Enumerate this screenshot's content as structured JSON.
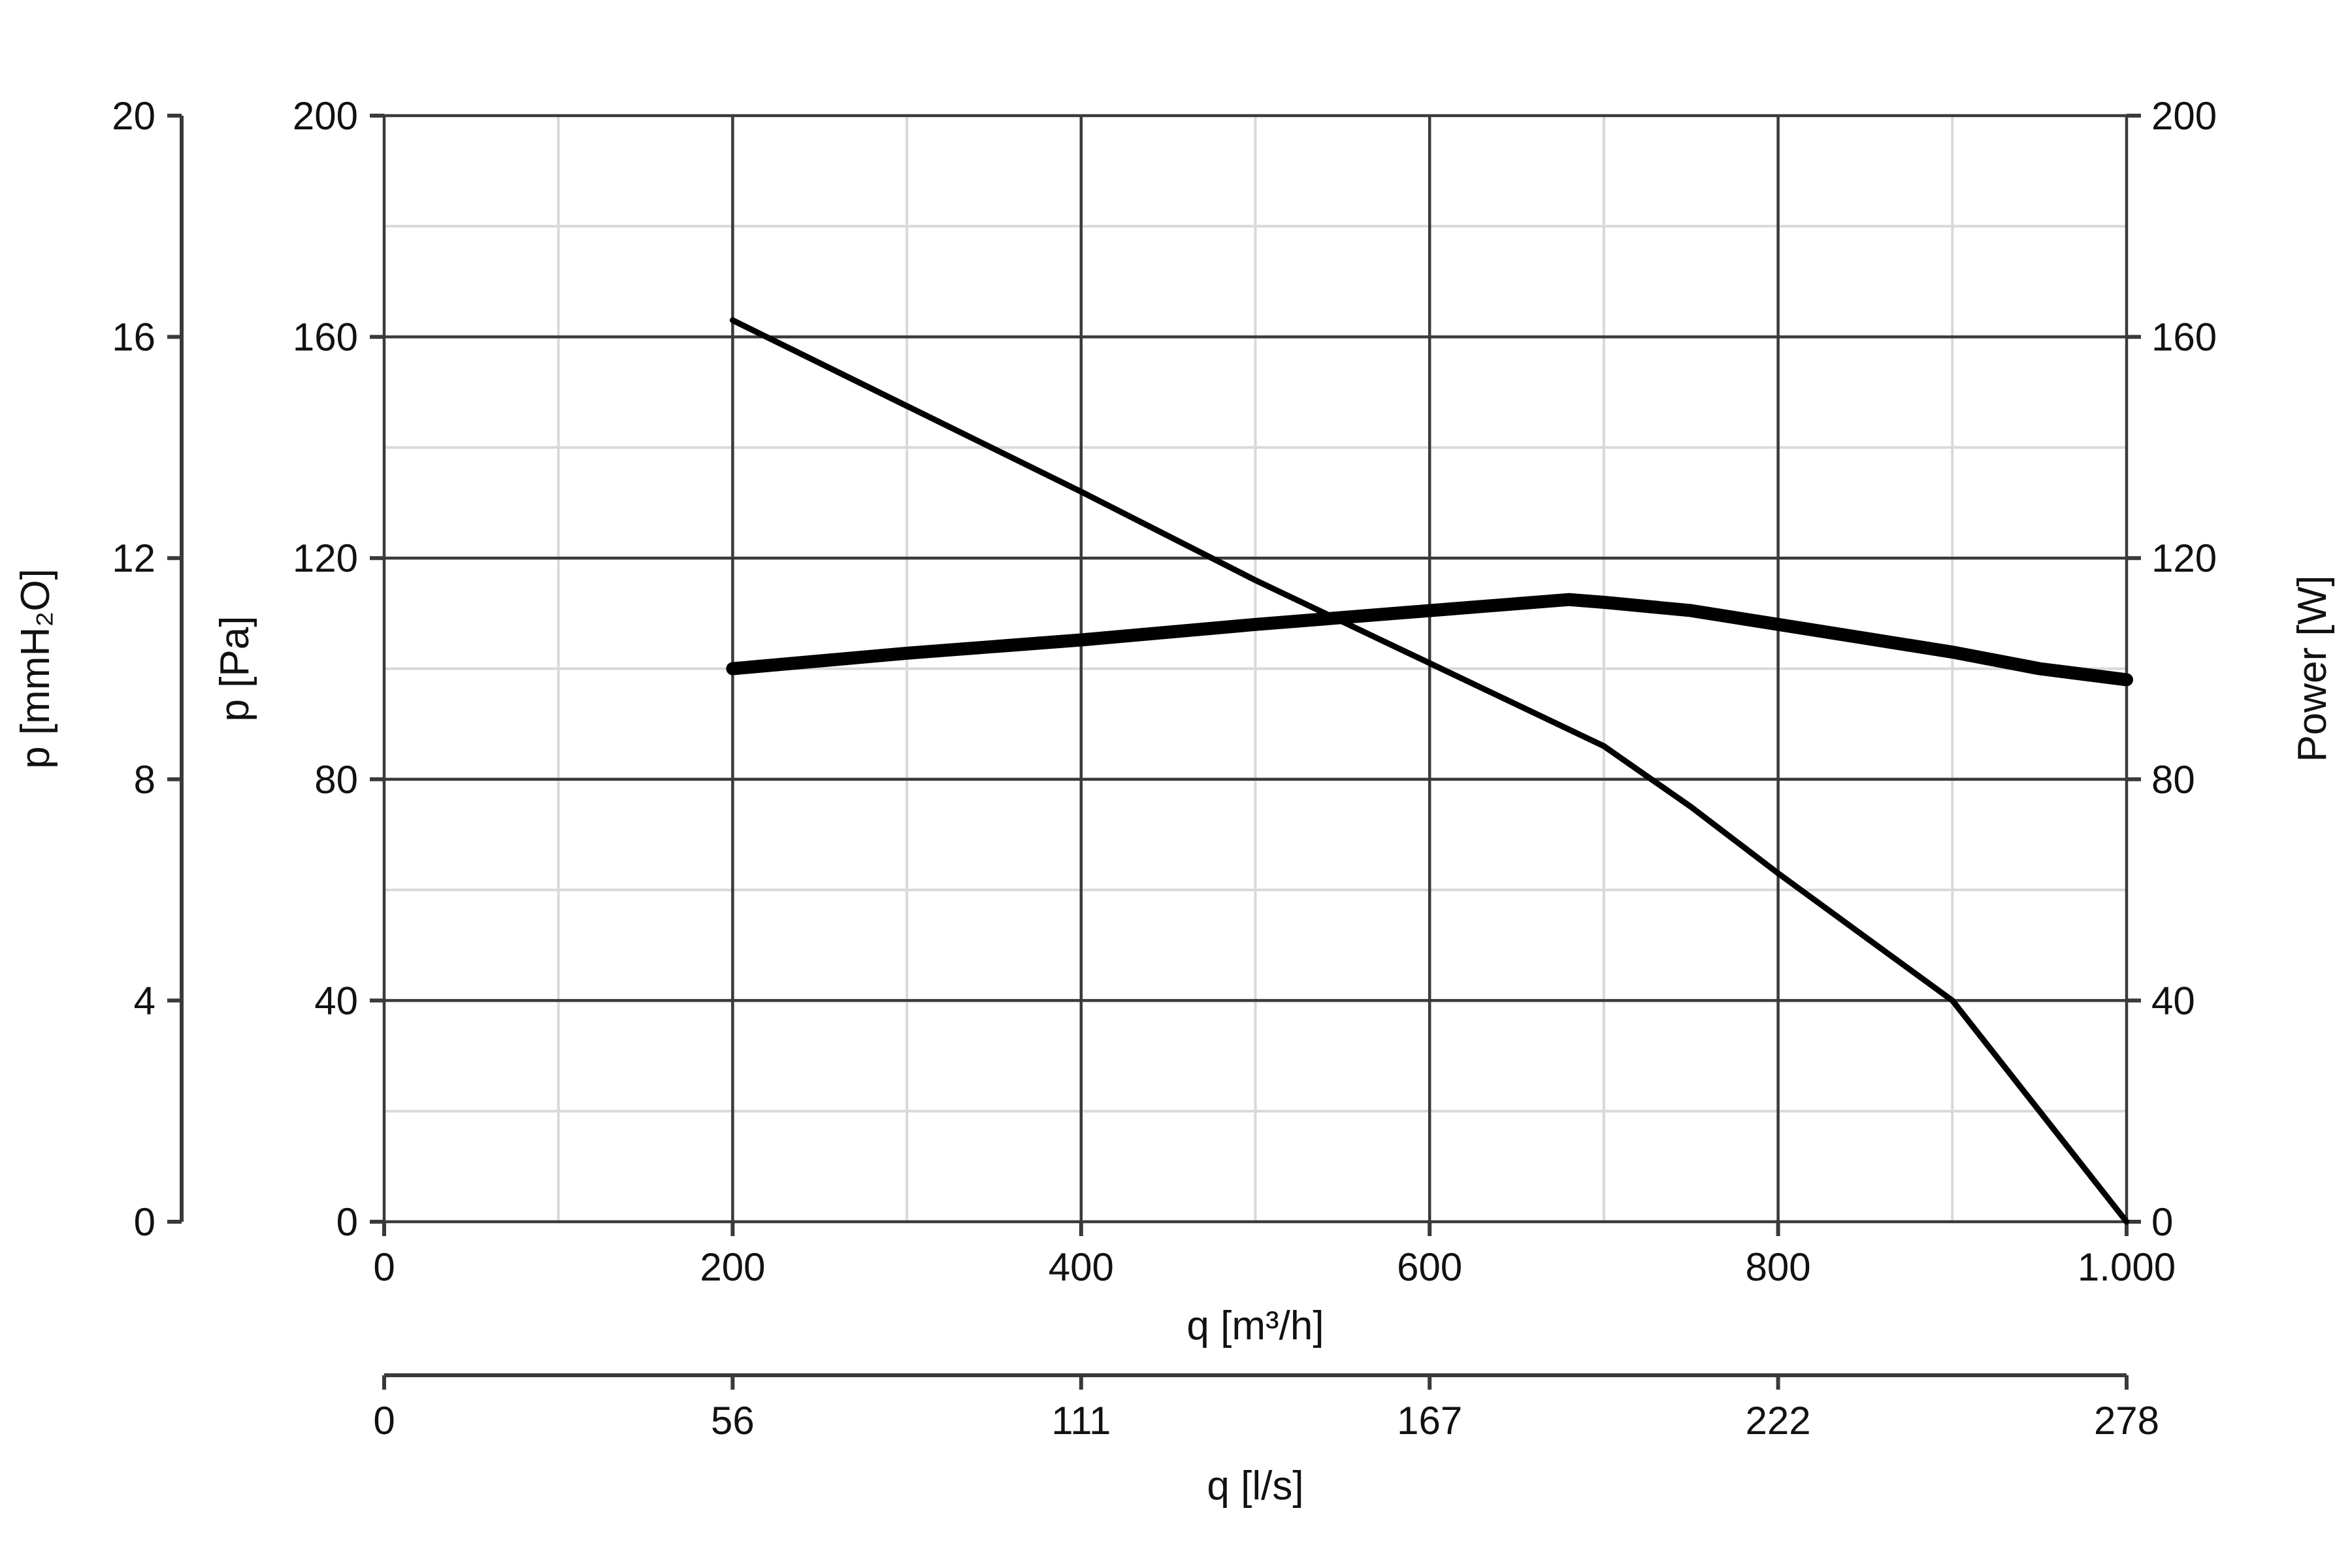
{
  "chart_data": {
    "type": "line",
    "x_axis": {
      "label": "q [m³/h]",
      "range": [
        0,
        1000
      ],
      "ticks": [
        0,
        200,
        400,
        600,
        800,
        1000
      ],
      "tick_labels": [
        "0",
        "200",
        "400",
        "600",
        "800",
        "1.000"
      ],
      "grid": "major every 200, minor every 100"
    },
    "x_axis_secondary": {
      "label": "q [l/s]",
      "range": [
        0,
        278
      ],
      "tick_labels": [
        "0",
        "56",
        "111",
        "167",
        "222",
        "278"
      ]
    },
    "y_axis": {
      "label": "p [Pa]",
      "range": [
        0,
        200
      ],
      "ticks": [
        0,
        40,
        80,
        120,
        160,
        200
      ],
      "tick_labels": [
        "0",
        "40",
        "80",
        "120",
        "160",
        "200"
      ],
      "grid": "major every 40, minor every 20"
    },
    "y_axis_secondary": {
      "label": "p [mmH₂O]",
      "range": [
        0,
        20
      ],
      "tick_labels": [
        "0",
        "4",
        "8",
        "12",
        "16",
        "20"
      ]
    },
    "y_axis_right": {
      "label": "Power [W]",
      "range": [
        0,
        200
      ],
      "tick_labels": [
        "0",
        "40",
        "80",
        "120",
        "160",
        "200"
      ]
    },
    "series": [
      {
        "axis": "p [Pa]",
        "line": "thin",
        "color": "#000000",
        "points": [
          [
            200,
            163
          ],
          [
            300,
            147.5
          ],
          [
            400,
            132
          ],
          [
            500,
            116
          ],
          [
            600,
            101
          ],
          [
            700,
            86
          ],
          [
            750,
            75
          ],
          [
            800,
            63
          ],
          [
            850,
            51.5
          ],
          [
            900,
            40
          ],
          [
            950,
            20
          ],
          [
            1000,
            0
          ]
        ]
      },
      {
        "axis": "Power [W]",
        "line": "thick",
        "color": "#000000",
        "points": [
          [
            200,
            100
          ],
          [
            300,
            102.8
          ],
          [
            400,
            105.2
          ],
          [
            500,
            108
          ],
          [
            600,
            110.5
          ],
          [
            680,
            112.5
          ],
          [
            700,
            112
          ],
          [
            750,
            110.5
          ],
          [
            800,
            108
          ],
          [
            850,
            105.5
          ],
          [
            900,
            103
          ],
          [
            950,
            100
          ],
          [
            1000,
            98
          ]
        ]
      }
    ],
    "legend": "none"
  }
}
